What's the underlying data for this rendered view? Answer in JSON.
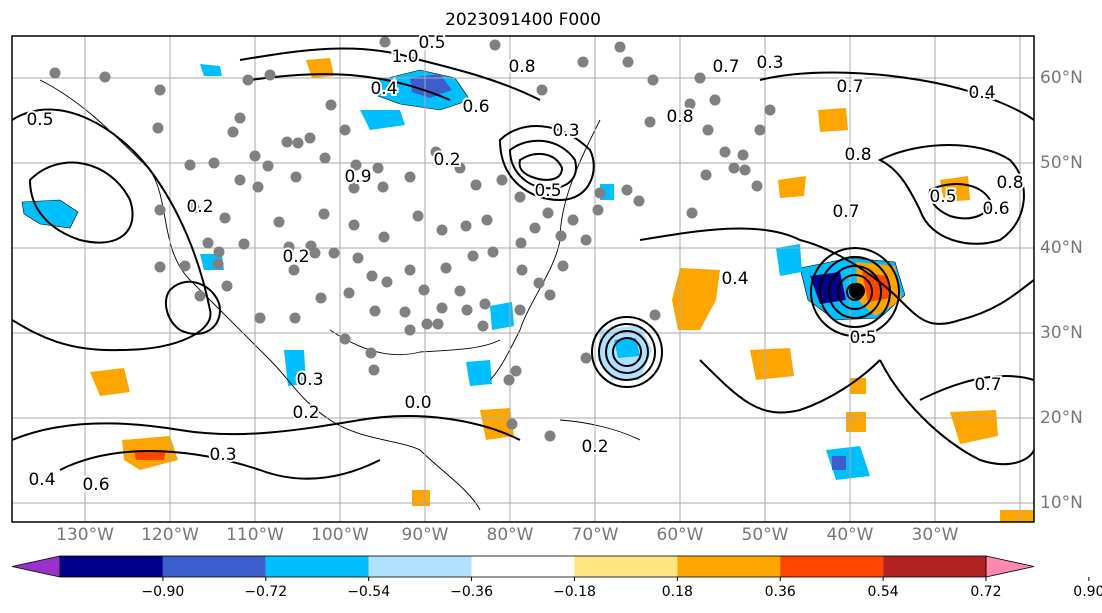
{
  "title": "2023091400 F000",
  "map": {
    "lon_labels": [
      "130°W",
      "120°W",
      "110°W",
      "100°W",
      "90°W",
      "80°W",
      "70°W",
      "60°W",
      "50°W",
      "40°W",
      "30°W"
    ],
    "lat_labels": [
      "60°N",
      "50°N",
      "40°N",
      "30°N",
      "20°N",
      "10°N"
    ],
    "contour_labels": [
      "1.0",
      "0.5",
      "0.8",
      "0.7",
      "0.4",
      "0.6",
      "0.3",
      "0.2",
      "0.8",
      "0.9",
      "0.5",
      "0.3",
      "0.7",
      "0.2",
      "0.5",
      "0.4",
      "0.2",
      "0.3",
      "0.2",
      "0.0",
      "0.2",
      "0.4",
      "0.3",
      "0.5",
      "0.4",
      "0.6",
      "0.8",
      "0.7",
      "0.5",
      "0.6",
      "0.7",
      "0.8"
    ],
    "colors": {
      "grid": "#aaaaaa",
      "contour": "#000000",
      "station": "#808080",
      "label_gray": "#777777"
    }
  },
  "colorbar": {
    "ticks": [
      "−0.90",
      "−0.72",
      "−0.54",
      "−0.36",
      "−0.18",
      "0.18",
      "0.36",
      "0.54",
      "0.72",
      "0.90"
    ],
    "colors": [
      "#9932cc",
      "#00008b",
      "#3a5fcd",
      "#00bfff",
      "#b0e2ff",
      "#ffffff",
      "#ffe680",
      "#ffa500",
      "#ff4500",
      "#b22222",
      "#ff88b0"
    ]
  }
}
